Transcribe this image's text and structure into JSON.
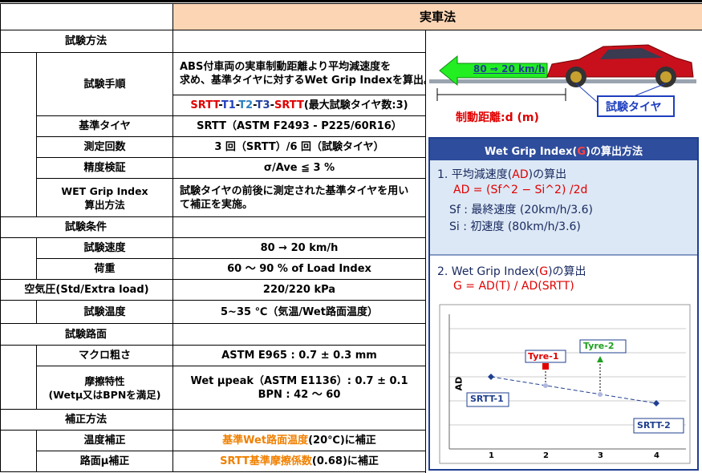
{
  "table": {
    "header": "実車法",
    "rows": [
      {
        "group": "試験方法"
      },
      {
        "label": [
          "試験手順"
        ],
        "align": "left",
        "value": [
          "ABS付車両の実車制動距離より平均減速度を",
          "求め、基準タイヤに対するWet Grip Indexを算出。"
        ],
        "sequence": [
          {
            "text": "SRTT",
            "color": "#e00000"
          },
          {
            "text": "-"
          },
          {
            "text": "T1",
            "color": "#1f3fbf"
          },
          {
            "text": "-"
          },
          {
            "text": "T2",
            "color": "#2a7fbf"
          },
          {
            "text": "-"
          },
          {
            "text": "T3",
            "color": "#2040a0"
          },
          {
            "text": "-"
          },
          {
            "text": "SRTT",
            "color": "#e00000"
          },
          {
            "text": "(最大試験タイヤ数:3)"
          }
        ]
      },
      {
        "label": [
          "基準タイヤ"
        ],
        "value": [
          "SRTT（ASTM F2493 - P225/60R16）"
        ]
      },
      {
        "label": [
          "測定回数"
        ],
        "value": [
          "3 回（SRTT）/6 回（試験タイヤ）"
        ]
      },
      {
        "label": [
          "精度検証"
        ],
        "value": [
          "σ/Ave ≦ 3 %"
        ]
      },
      {
        "label": [
          "WET Grip Index",
          "算出方法"
        ],
        "align": "left",
        "value": [
          "試験タイヤの前後に測定された基準タイヤを用い",
          "て補正を実施。"
        ]
      },
      {
        "group": "試験条件"
      },
      {
        "label": [
          "試験速度"
        ],
        "value": [
          "80 → 20 km/h"
        ]
      },
      {
        "label": [
          "荷重"
        ],
        "value": [
          "60 ～ 90 % of Load Index"
        ]
      },
      {
        "label": [
          "空気圧(Std/Extra load)"
        ],
        "wide": true,
        "value": [
          "220/220 kPa"
        ]
      },
      {
        "label": [
          "試験温度"
        ],
        "value": [
          "5~35 ℃（気温/Wet路面温度）"
        ]
      },
      {
        "group": "試験路面"
      },
      {
        "label": [
          "マクロ粗さ"
        ],
        "value": [
          "ASTM E965 : 0.7 ± 0.3 mm"
        ]
      },
      {
        "label": [
          "摩擦特性",
          "(Wetμ又はBPNを満足)"
        ],
        "value": [
          "Wet μpeak（ASTM E1136）: 0.7 ± 0.1",
          "BPN : 42 ～ 60"
        ]
      },
      {
        "group": "補正方法"
      },
      {
        "label": [
          "温度補正"
        ],
        "value": [
          [
            {
              "text": "基準Wet路面温度",
              "color": "#f08000"
            },
            {
              "text": "(20℃)に補正"
            }
          ]
        ]
      },
      {
        "label": [
          "路面μ補正"
        ],
        "value": [
          [
            {
              "text": "SRTT基準摩擦係数",
              "color": "#f08000"
            },
            {
              "text": "(0.68)に補正"
            }
          ]
        ]
      }
    ]
  },
  "diagram": {
    "arrow_label": "80 ⇒ 20 km/h",
    "distance_label": "制動距離:d (m)",
    "tire_label": "試験タイヤ"
  },
  "method": {
    "title": [
      {
        "text": "Wet Grip Index("
      },
      {
        "text": "G",
        "color": "#ff4040"
      },
      {
        "text": ")の算出方法"
      }
    ],
    "step1": {
      "title": [
        {
          "text": "1. 平均減速度("
        },
        {
          "text": "AD",
          "color": "#e00000"
        },
        {
          "text": ")の算出"
        }
      ],
      "formula": "AD = (Sf^2 − Si^2) /2d",
      "notes": [
        "Sf : 最終速度 (20km/h/3.6)",
        "Si : 初速度 (80km/h/3.6)"
      ]
    },
    "step2": {
      "title": [
        {
          "text": "2. Wet Grip Index("
        },
        {
          "text": "G",
          "color": "#e00000"
        },
        {
          "text": ")の算出"
        }
      ],
      "formula": "G = AD(T) / AD(SRTT)"
    },
    "chart": {
      "y_label": "AD",
      "x_ticks": [
        "1",
        "2",
        "3",
        "4"
      ],
      "labels": [
        "Tyre-1",
        "Tyre-2",
        "SRTT-1",
        "SRTT-2"
      ]
    }
  }
}
